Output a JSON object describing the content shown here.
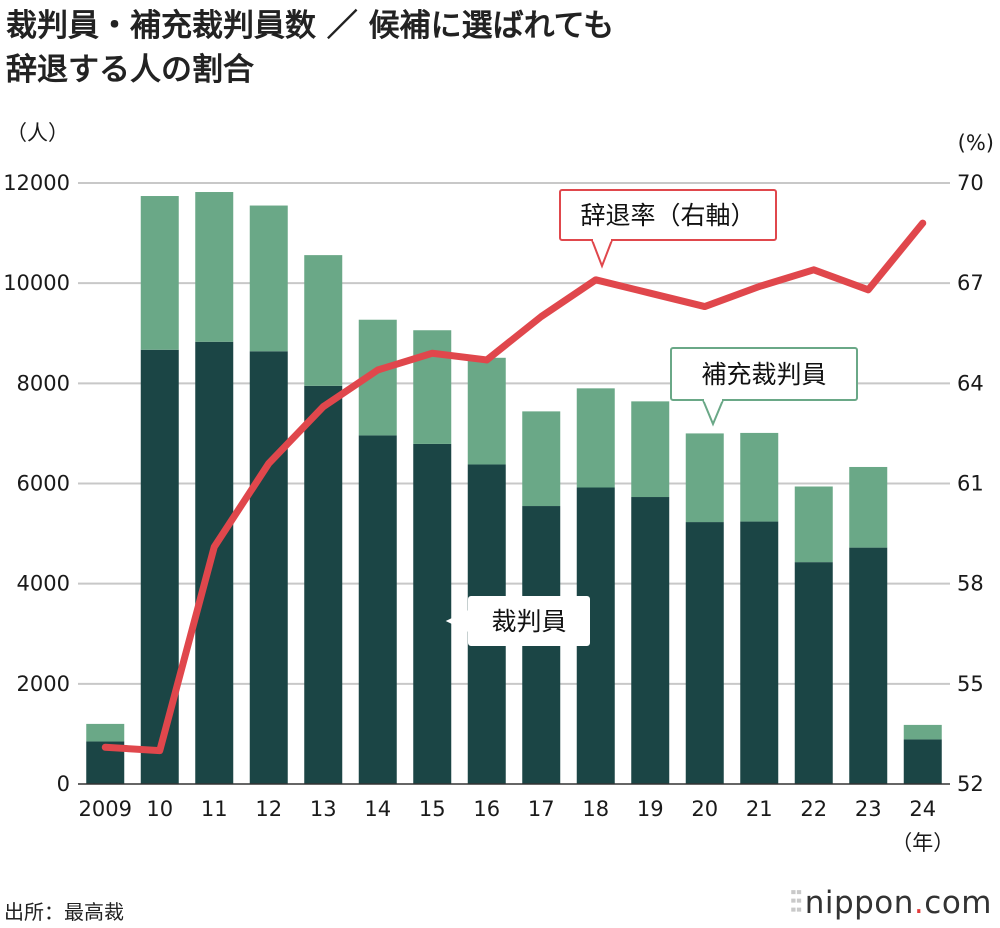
{
  "title": {
    "line1": "裁判員・補充裁判員数 ／ 候補に選ばれても",
    "line2": "辞退する人の割合"
  },
  "source": "出所：最高裁",
  "brand": {
    "mark": "⫶⫶",
    "name": "nippon",
    "dot": ".",
    "suffix": "com"
  },
  "colors": {
    "judge": "#1b4545",
    "alternate": "#6aa887",
    "rate": "#e0474c",
    "grid": "#c8c8c8",
    "text": "#1a1a1a"
  },
  "chart_data": {
    "type": "bar+line",
    "categories": [
      "2009",
      "10",
      "11",
      "12",
      "13",
      "14",
      "15",
      "16",
      "17",
      "18",
      "19",
      "20",
      "21",
      "22",
      "23",
      "24"
    ],
    "x_unit": "（年）",
    "series": [
      {
        "name": "裁判員",
        "type": "stacked-bar",
        "axis": "left",
        "values": [
          850,
          8670,
          8830,
          8640,
          7950,
          6960,
          6790,
          6380,
          5550,
          5920,
          5730,
          5230,
          5240,
          4430,
          4720,
          890
        ]
      },
      {
        "name": "補充裁判員",
        "type": "stacked-bar",
        "axis": "left",
        "values": [
          350,
          3070,
          2990,
          2910,
          2610,
          2310,
          2270,
          2130,
          1890,
          1980,
          1910,
          1770,
          1770,
          1510,
          1610,
          290
        ]
      },
      {
        "name": "辞退率（右軸）",
        "type": "line",
        "axis": "right",
        "values": [
          53.1,
          53.0,
          59.1,
          61.6,
          63.3,
          64.4,
          64.9,
          64.7,
          66.0,
          67.1,
          66.7,
          66.3,
          66.9,
          67.4,
          66.8,
          68.8
        ]
      }
    ],
    "left_axis": {
      "unit": "（人）",
      "min": 0,
      "max": 12000,
      "ticks": [
        "0",
        "2000",
        "4000",
        "6000",
        "8000",
        "10000",
        "12000"
      ]
    },
    "right_axis": {
      "unit": "(%)",
      "min": 52,
      "max": 70,
      "ticks": [
        "52",
        "55",
        "58",
        "61",
        "64",
        "67",
        "70"
      ]
    },
    "callouts": {
      "rate": "辞退率（右軸）",
      "alternate": "補充裁判員",
      "judge": "裁判員"
    },
    "grid": true
  }
}
